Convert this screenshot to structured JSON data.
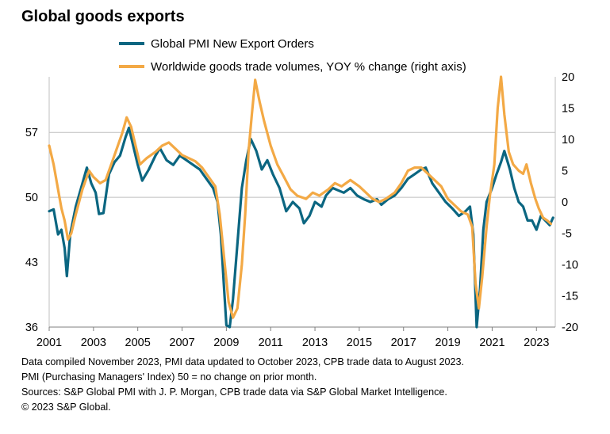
{
  "title": "Global goods exports",
  "legend": [
    {
      "label": "Global PMI New Export Orders",
      "color": "#0b6681"
    },
    {
      "label": "Worldwide goods trade volumes, YOY % change (right axis)",
      "color": "#f3a945"
    }
  ],
  "notes": [
    "Data compiled November 2023, PMI data updated to October 2023, CPB trade data to August 2023.",
    "PMI (Purchasing Managers' Index) 50 = no change on prior month.",
    "Sources: S&P Global PMI with J. P. Morgan,  CPB trade data via S&P Global Market Intelligence.",
    "© 2023 S&P Global."
  ],
  "chart_data": {
    "type": "line",
    "x_range": [
      2001,
      2023.85
    ],
    "x_ticks": [
      "2001",
      "2003",
      "2005",
      "2007",
      "2009",
      "2011",
      "2013",
      "2015",
      "2017",
      "2019",
      "2021",
      "2023"
    ],
    "y_left": {
      "range": [
        36,
        63
      ],
      "ticks": [
        "36",
        "43",
        "50",
        "57"
      ],
      "gridlines": [
        57,
        50
      ]
    },
    "y_right": {
      "range": [
        -20,
        20
      ],
      "ticks": [
        "20",
        "15",
        "10",
        "5",
        "0",
        "-5",
        "-10",
        "-15",
        "-20"
      ]
    },
    "series": [
      {
        "name": "Global PMI New Export Orders",
        "axis": "left",
        "color": "#0b6681",
        "points": [
          [
            2001.0,
            48.5
          ],
          [
            2001.2,
            48.7
          ],
          [
            2001.4,
            46.0
          ],
          [
            2001.55,
            46.5
          ],
          [
            2001.7,
            44.5
          ],
          [
            2001.8,
            41.5
          ],
          [
            2001.95,
            46.0
          ],
          [
            2002.2,
            49.0
          ],
          [
            2002.5,
            51.5
          ],
          [
            2002.7,
            53.2
          ],
          [
            2002.9,
            51.5
          ],
          [
            2003.1,
            50.5
          ],
          [
            2003.25,
            48.2
          ],
          [
            2003.45,
            48.3
          ],
          [
            2003.7,
            52.5
          ],
          [
            2003.95,
            53.8
          ],
          [
            2004.2,
            54.5
          ],
          [
            2004.45,
            56.5
          ],
          [
            2004.6,
            57.5
          ],
          [
            2004.8,
            55.5
          ],
          [
            2005.0,
            53.5
          ],
          [
            2005.2,
            51.8
          ],
          [
            2005.5,
            53.0
          ],
          [
            2005.8,
            54.5
          ],
          [
            2006.0,
            55.3
          ],
          [
            2006.3,
            54.0
          ],
          [
            2006.6,
            53.5
          ],
          [
            2006.9,
            54.5
          ],
          [
            2007.2,
            54.0
          ],
          [
            2007.5,
            53.5
          ],
          [
            2007.8,
            53.0
          ],
          [
            2008.1,
            52.0
          ],
          [
            2008.4,
            51.0
          ],
          [
            2008.6,
            49.5
          ],
          [
            2008.75,
            46.0
          ],
          [
            2008.9,
            40.0
          ],
          [
            2009.0,
            36.2
          ],
          [
            2009.15,
            36.0
          ],
          [
            2009.3,
            39.0
          ],
          [
            2009.5,
            45.0
          ],
          [
            2009.7,
            51.0
          ],
          [
            2009.9,
            54.0
          ],
          [
            2010.1,
            56.3
          ],
          [
            2010.35,
            55.0
          ],
          [
            2010.6,
            53.0
          ],
          [
            2010.85,
            54.0
          ],
          [
            2011.1,
            52.5
          ],
          [
            2011.4,
            51.0
          ],
          [
            2011.7,
            48.5
          ],
          [
            2012.0,
            49.5
          ],
          [
            2012.3,
            48.8
          ],
          [
            2012.5,
            47.2
          ],
          [
            2012.75,
            48.0
          ],
          [
            2013.0,
            49.5
          ],
          [
            2013.3,
            49.0
          ],
          [
            2013.5,
            50.2
          ],
          [
            2013.8,
            51.0
          ],
          [
            2014.0,
            50.8
          ],
          [
            2014.3,
            50.5
          ],
          [
            2014.6,
            51.0
          ],
          [
            2014.9,
            50.2
          ],
          [
            2015.2,
            49.8
          ],
          [
            2015.5,
            49.5
          ],
          [
            2015.8,
            49.8
          ],
          [
            2016.0,
            49.2
          ],
          [
            2016.3,
            49.8
          ],
          [
            2016.6,
            50.2
          ],
          [
            2016.9,
            51.0
          ],
          [
            2017.2,
            52.0
          ],
          [
            2017.5,
            52.5
          ],
          [
            2017.8,
            53.0
          ],
          [
            2018.0,
            53.2
          ],
          [
            2018.3,
            51.5
          ],
          [
            2018.6,
            50.5
          ],
          [
            2018.9,
            49.5
          ],
          [
            2019.2,
            48.8
          ],
          [
            2019.5,
            48.0
          ],
          [
            2019.8,
            48.5
          ],
          [
            2020.0,
            49.0
          ],
          [
            2020.15,
            46.0
          ],
          [
            2020.3,
            36.0
          ],
          [
            2020.45,
            40.0
          ],
          [
            2020.6,
            46.5
          ],
          [
            2020.75,
            49.5
          ],
          [
            2021.0,
            51.0
          ],
          [
            2021.2,
            52.5
          ],
          [
            2021.4,
            53.8
          ],
          [
            2021.55,
            55.0
          ],
          [
            2021.8,
            53.0
          ],
          [
            2022.0,
            51.0
          ],
          [
            2022.2,
            49.5
          ],
          [
            2022.4,
            49.0
          ],
          [
            2022.6,
            47.5
          ],
          [
            2022.8,
            47.5
          ],
          [
            2023.0,
            46.5
          ],
          [
            2023.2,
            48.0
          ],
          [
            2023.4,
            47.5
          ],
          [
            2023.6,
            47.0
          ],
          [
            2023.75,
            47.8
          ]
        ]
      },
      {
        "name": "Worldwide goods trade volumes, YOY % change (right axis)",
        "axis": "right",
        "color": "#f3a945",
        "points": [
          [
            2001.0,
            9.0
          ],
          [
            2001.2,
            6.0
          ],
          [
            2001.4,
            2.0
          ],
          [
            2001.55,
            -1.0
          ],
          [
            2001.7,
            -3.0
          ],
          [
            2001.85,
            -6.0
          ],
          [
            2002.0,
            -5.0
          ],
          [
            2002.2,
            -2.0
          ],
          [
            2002.5,
            2.0
          ],
          [
            2002.8,
            5.0
          ],
          [
            2003.0,
            4.0
          ],
          [
            2003.3,
            3.0
          ],
          [
            2003.55,
            3.5
          ],
          [
            2003.8,
            6.0
          ],
          [
            2004.0,
            8.0
          ],
          [
            2004.3,
            11.0
          ],
          [
            2004.5,
            13.5
          ],
          [
            2004.7,
            12.0
          ],
          [
            2004.9,
            9.0
          ],
          [
            2005.1,
            6.0
          ],
          [
            2005.4,
            7.0
          ],
          [
            2005.8,
            8.0
          ],
          [
            2006.1,
            9.0
          ],
          [
            2006.4,
            9.5
          ],
          [
            2006.7,
            8.5
          ],
          [
            2007.0,
            7.5
          ],
          [
            2007.3,
            7.0
          ],
          [
            2007.6,
            6.5
          ],
          [
            2007.9,
            5.5
          ],
          [
            2008.2,
            4.0
          ],
          [
            2008.5,
            2.5
          ],
          [
            2008.7,
            -2.0
          ],
          [
            2008.9,
            -9.0
          ],
          [
            2009.1,
            -16.0
          ],
          [
            2009.3,
            -18.5
          ],
          [
            2009.5,
            -17.0
          ],
          [
            2009.7,
            -10.0
          ],
          [
            2009.85,
            -2.0
          ],
          [
            2010.0,
            8.0
          ],
          [
            2010.15,
            14.0
          ],
          [
            2010.3,
            19.5
          ],
          [
            2010.5,
            16.0
          ],
          [
            2010.7,
            13.0
          ],
          [
            2011.0,
            9.0
          ],
          [
            2011.3,
            6.0
          ],
          [
            2011.6,
            4.0
          ],
          [
            2011.9,
            2.0
          ],
          [
            2012.2,
            1.0
          ],
          [
            2012.6,
            0.5
          ],
          [
            2012.9,
            1.5
          ],
          [
            2013.2,
            1.0
          ],
          [
            2013.6,
            2.0
          ],
          [
            2013.9,
            3.0
          ],
          [
            2014.2,
            2.5
          ],
          [
            2014.6,
            3.5
          ],
          [
            2015.0,
            2.5
          ],
          [
            2015.3,
            1.5
          ],
          [
            2015.6,
            0.5
          ],
          [
            2015.9,
            0.0
          ],
          [
            2016.2,
            0.5
          ],
          [
            2016.6,
            1.5
          ],
          [
            2016.9,
            3.0
          ],
          [
            2017.2,
            5.0
          ],
          [
            2017.5,
            5.5
          ],
          [
            2017.8,
            5.5
          ],
          [
            2018.1,
            4.5
          ],
          [
            2018.4,
            3.5
          ],
          [
            2018.7,
            2.5
          ],
          [
            2019.0,
            0.5
          ],
          [
            2019.3,
            -0.5
          ],
          [
            2019.6,
            -1.5
          ],
          [
            2019.9,
            -2.0
          ],
          [
            2020.1,
            -4.0
          ],
          [
            2020.25,
            -13.0
          ],
          [
            2020.4,
            -17.0
          ],
          [
            2020.55,
            -12.0
          ],
          [
            2020.75,
            -4.0
          ],
          [
            2020.9,
            1.0
          ],
          [
            2021.1,
            6.0
          ],
          [
            2021.25,
            15.0
          ],
          [
            2021.4,
            20.0
          ],
          [
            2021.55,
            14.0
          ],
          [
            2021.75,
            8.0
          ],
          [
            2021.95,
            6.0
          ],
          [
            2022.2,
            5.0
          ],
          [
            2022.4,
            4.5
          ],
          [
            2022.55,
            6.0
          ],
          [
            2022.75,
            3.0
          ],
          [
            2022.95,
            0.5
          ],
          [
            2023.1,
            -1.0
          ],
          [
            2023.3,
            -2.5
          ],
          [
            2023.5,
            -3.0
          ],
          [
            2023.65,
            -3.5
          ]
        ]
      }
    ]
  }
}
